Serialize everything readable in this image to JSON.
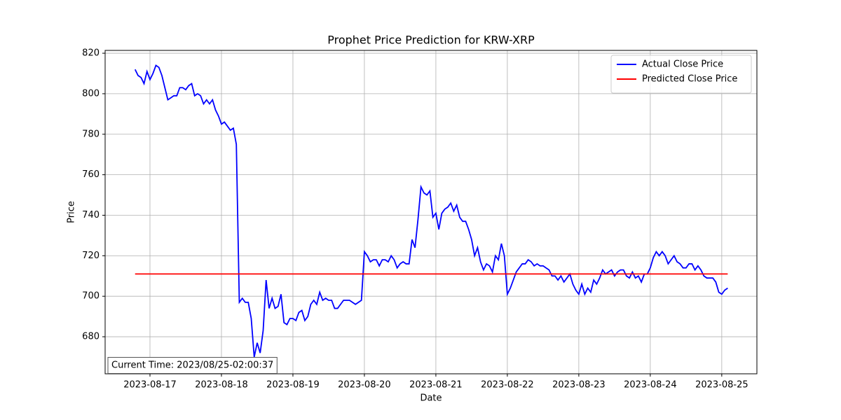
{
  "chart_data": {
    "type": "line",
    "title": "Prophet Price Prediction for KRW-XRP",
    "xlabel": "Date",
    "ylabel": "Price",
    "annotation": "Current Time: 2023/08/25-02:00:37",
    "xlim": [
      -15.06,
      203.8
    ],
    "ylim": [
      661.7,
      821.4
    ],
    "xticks": [
      {
        "value": 0,
        "label": "2023-08-17"
      },
      {
        "value": 24,
        "label": "2023-08-18"
      },
      {
        "value": 48,
        "label": "2023-08-19"
      },
      {
        "value": 72,
        "label": "2023-08-20"
      },
      {
        "value": 96,
        "label": "2023-08-21"
      },
      {
        "value": 120,
        "label": "2023-08-22"
      },
      {
        "value": 144,
        "label": "2023-08-23"
      },
      {
        "value": 168,
        "label": "2023-08-24"
      },
      {
        "value": 192,
        "label": "2023-08-25"
      }
    ],
    "yticks": [
      680,
      700,
      720,
      740,
      760,
      780,
      800,
      820
    ],
    "grid": true,
    "legend": "upper right",
    "series": [
      {
        "name": "Actual Close Price",
        "color": "#0000ff",
        "x": [
          -5,
          -4,
          -3,
          -2,
          -1,
          0,
          1,
          2,
          3,
          4,
          5,
          6,
          7,
          8,
          9,
          10,
          11,
          12,
          13,
          14,
          15,
          16,
          17,
          18,
          19,
          20,
          21,
          22,
          23,
          24,
          25,
          26,
          27,
          28,
          29,
          30,
          31,
          32,
          33,
          34,
          35,
          36,
          37,
          38,
          39,
          40,
          41,
          42,
          43,
          44,
          45,
          46,
          47,
          48,
          49,
          50,
          51,
          52,
          53,
          54,
          55,
          56,
          57,
          58,
          59,
          60,
          61,
          62,
          63,
          64,
          65,
          66,
          67,
          68,
          69,
          70,
          71,
          72,
          73,
          74,
          75,
          76,
          77,
          78,
          79,
          80,
          81,
          82,
          83,
          84,
          85,
          86,
          87,
          88,
          89,
          90,
          91,
          92,
          93,
          94,
          95,
          96,
          97,
          98,
          99,
          100,
          101,
          102,
          103,
          104,
          105,
          106,
          107,
          108,
          109,
          110,
          111,
          112,
          113,
          114,
          115,
          116,
          117,
          118,
          119,
          120,
          121,
          122,
          123,
          124,
          125,
          126,
          127,
          128,
          129,
          130,
          131,
          132,
          133,
          134,
          135,
          136,
          137,
          138,
          139,
          140,
          141,
          142,
          143,
          144,
          145,
          146,
          147,
          148,
          149,
          150,
          151,
          152,
          153,
          154,
          155,
          156,
          157,
          158,
          159,
          160,
          161,
          162,
          163,
          164,
          165,
          166,
          167,
          168,
          169,
          170,
          171,
          172,
          173,
          174,
          175,
          176,
          177,
          178,
          179,
          180,
          181,
          182,
          183,
          184,
          185,
          186,
          187,
          188,
          189,
          190,
          191,
          192,
          193,
          194
        ],
        "values": [
          812,
          809,
          808,
          805,
          811,
          807,
          810,
          814,
          813,
          809,
          803,
          797,
          798,
          799,
          799,
          803,
          803,
          802,
          804,
          805,
          799,
          800,
          799,
          795,
          797,
          795,
          797,
          792,
          789,
          785,
          786,
          784,
          782,
          783,
          775,
          697,
          699,
          697,
          697,
          689,
          670,
          677,
          672,
          683,
          708,
          694,
          699,
          694,
          695,
          701,
          687,
          686,
          689,
          689,
          688,
          692,
          693,
          688,
          690,
          696,
          698,
          696,
          702,
          698,
          699,
          698,
          698,
          694,
          694,
          696,
          698,
          698,
          698,
          697,
          696,
          697,
          698,
          722,
          720,
          717,
          718,
          718,
          715,
          718,
          718,
          717,
          720,
          718,
          714,
          716,
          717,
          716,
          716,
          728,
          724,
          738,
          754,
          751,
          750,
          752,
          739,
          741,
          733,
          741,
          743,
          744,
          746,
          742,
          745,
          739,
          737,
          737,
          733,
          728,
          720,
          724,
          717,
          713,
          716,
          715,
          712,
          720,
          718,
          726,
          720,
          701,
          704,
          708,
          712,
          714,
          716,
          716,
          718,
          717,
          715,
          716,
          715,
          715,
          714,
          713,
          710,
          710,
          708,
          710,
          707,
          709,
          711,
          706,
          703,
          701,
          706,
          701,
          704,
          702,
          708,
          706,
          709,
          713,
          711,
          712,
          713,
          710,
          712,
          713,
          713,
          710,
          709,
          712,
          709,
          710,
          707,
          711,
          711,
          714,
          719,
          722,
          720,
          722,
          720,
          716,
          718,
          720,
          717,
          716,
          714,
          714,
          716,
          716,
          713,
          715,
          713,
          710,
          709,
          709,
          709,
          707,
          702,
          701,
          703,
          704
        ]
      },
      {
        "name": "Predicted Close Price",
        "color": "#ff0000",
        "x": [
          -5,
          194
        ],
        "values": [
          711,
          711
        ]
      }
    ]
  }
}
